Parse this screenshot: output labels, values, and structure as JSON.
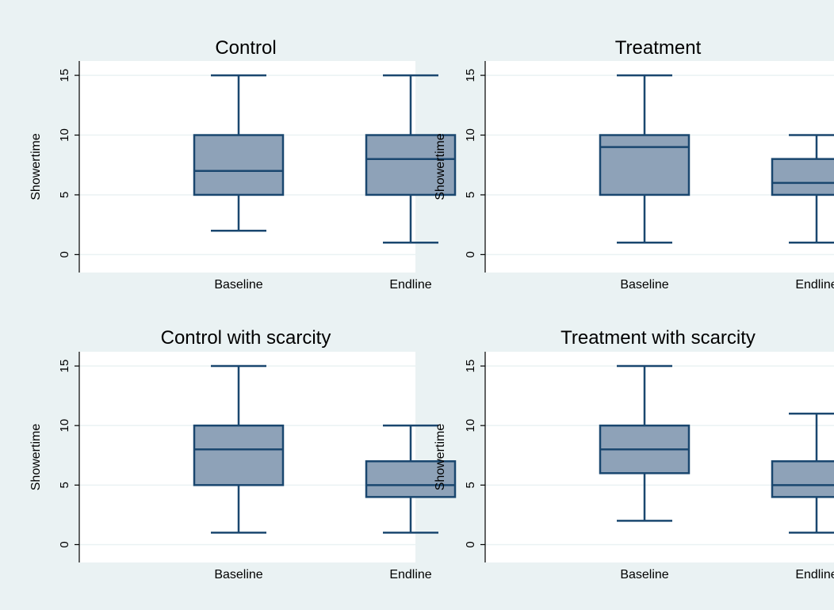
{
  "figure": {
    "background": "#eaf2f3",
    "plot_background": "#ffffff",
    "box_fill": "#8ea2b8",
    "line_color": "#1a476f",
    "grid_color": "#eaf2f3"
  },
  "chart_data": [
    {
      "type": "box",
      "title": "Control",
      "ylabel": "Showertime",
      "xlabel": "",
      "ylim": [
        -1.5,
        16.2
      ],
      "yticks": [
        0,
        5,
        10,
        15
      ],
      "grid": true,
      "categories": [
        "Baseline",
        "Endline"
      ],
      "boxes": [
        {
          "min": 2,
          "q1": 5,
          "median": 7,
          "q3": 10,
          "max": 15
        },
        {
          "min": 1,
          "q1": 5,
          "median": 8,
          "q3": 10,
          "max": 15
        }
      ]
    },
    {
      "type": "box",
      "title": "Treatment",
      "ylabel": "Showertime",
      "xlabel": "",
      "ylim": [
        -1.5,
        16.2
      ],
      "yticks": [
        0,
        5,
        10,
        15
      ],
      "grid": true,
      "categories": [
        "Baseline",
        "Endline"
      ],
      "boxes": [
        {
          "min": 1,
          "q1": 5,
          "median": 9,
          "q3": 10,
          "max": 15
        },
        {
          "min": 1,
          "q1": 5,
          "median": 6,
          "q3": 8,
          "max": 10
        }
      ]
    },
    {
      "type": "box",
      "title": "Control with scarcity",
      "ylabel": "Showertime",
      "xlabel": "",
      "ylim": [
        -1.5,
        16.2
      ],
      "yticks": [
        0,
        5,
        10,
        15
      ],
      "grid": true,
      "categories": [
        "Baseline",
        "Endline"
      ],
      "boxes": [
        {
          "min": 1,
          "q1": 5,
          "median": 8,
          "q3": 10,
          "max": 15
        },
        {
          "min": 1,
          "q1": 4,
          "median": 5,
          "q3": 7,
          "max": 10
        }
      ]
    },
    {
      "type": "box",
      "title": "Treatment with scarcity",
      "ylabel": "Showertime",
      "xlabel": "",
      "ylim": [
        -1.5,
        16.2
      ],
      "yticks": [
        0,
        5,
        10,
        15
      ],
      "grid": true,
      "categories": [
        "Baseline",
        "Endline"
      ],
      "boxes": [
        {
          "min": 2,
          "q1": 6,
          "median": 8,
          "q3": 10,
          "max": 15
        },
        {
          "min": 1,
          "q1": 4,
          "median": 5,
          "q3": 7,
          "max": 11
        }
      ]
    }
  ]
}
